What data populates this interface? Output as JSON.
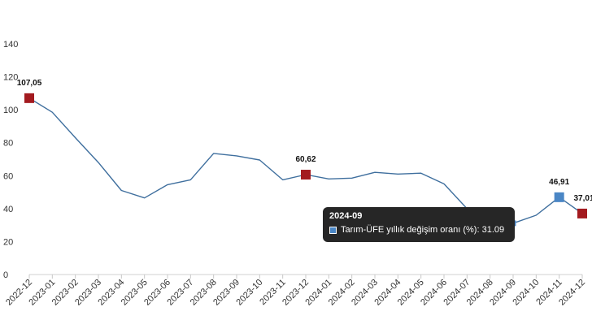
{
  "chart_data": {
    "type": "line",
    "categories": [
      "2022-12",
      "2023-01",
      "2023-02",
      "2023-03",
      "2023-04",
      "2023-05",
      "2023-06",
      "2023-07",
      "2023-08",
      "2023-09",
      "2023-10",
      "2023-11",
      "2023-12",
      "2024-01",
      "2024-02",
      "2024-03",
      "2024-04",
      "2024-05",
      "2024-06",
      "2024-07",
      "2024-08",
      "2024-09",
      "2024-10",
      "2024-11",
      "2024-12"
    ],
    "series": [
      {
        "name": "Tarım-ÜFE yıllık değişim oranı (%)",
        "values": [
          107.05,
          98.5,
          83,
          68,
          51,
          46.5,
          54.5,
          57.5,
          73.5,
          72,
          69.5,
          57.5,
          60.62,
          58,
          58.5,
          62,
          61,
          61.5,
          55,
          40,
          32,
          31.09,
          36,
          46.91,
          37.01
        ]
      }
    ],
    "highlighted_points": [
      {
        "index": 0,
        "label": "107,05",
        "color": "#a31a1f"
      },
      {
        "index": 12,
        "label": "60,62",
        "color": "#a31a1f"
      },
      {
        "index": 23,
        "label": "46,91",
        "color": "#4a86c5"
      },
      {
        "index": 24,
        "label": "37,01",
        "color": "#a31a1f"
      }
    ],
    "ylim": [
      0,
      140
    ],
    "yticks": [
      0,
      20,
      40,
      60,
      80,
      100,
      120,
      140
    ],
    "line_color": "#3f6f9e",
    "grid": false,
    "tooltip": {
      "title": "2024-09",
      "series_label": "Tarım-ÜFE yıllık değişim oranı (%): 31.09",
      "index": 21
    }
  }
}
